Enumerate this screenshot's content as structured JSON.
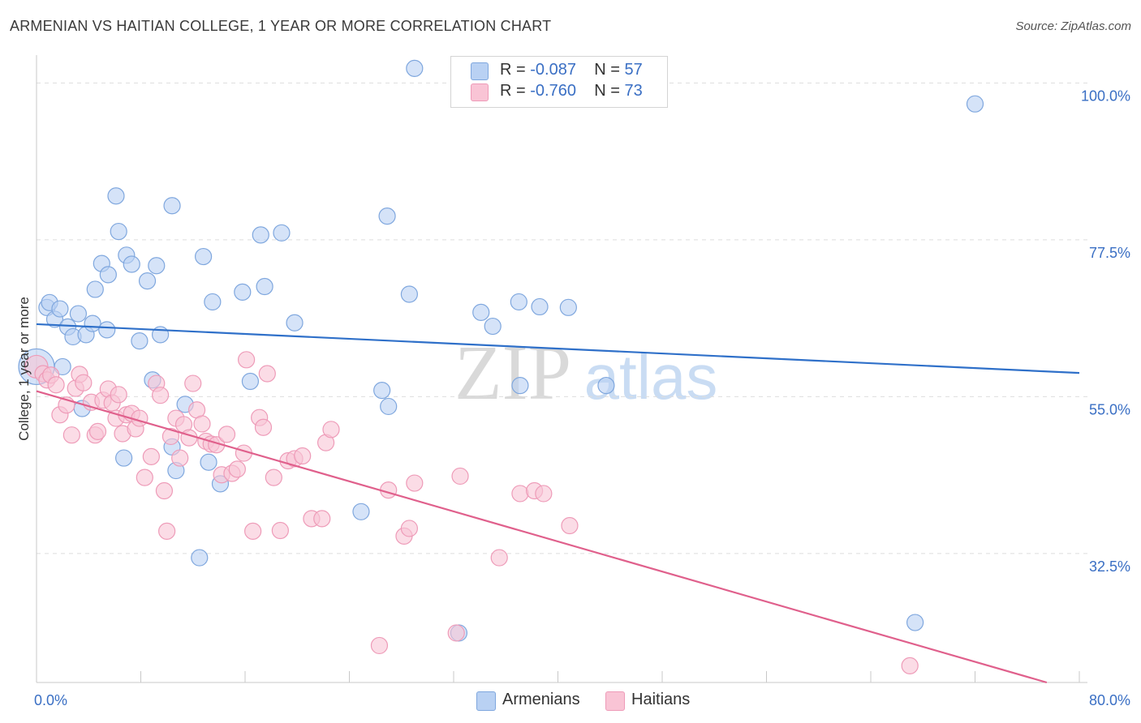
{
  "title": "ARMENIAN VS HAITIAN COLLEGE, 1 YEAR OR MORE CORRELATION CHART",
  "source": "Source: ZipAtlas.com",
  "watermark": {
    "zip": "ZIP",
    "atlas": "atlas"
  },
  "legend": {
    "r_label": "R =",
    "n_label": "N =",
    "rows": [
      {
        "r": "-0.087",
        "n": "57"
      },
      {
        "r": "-0.760",
        "n": "73"
      }
    ]
  },
  "colors": {
    "armenian_fill": "#b9d1f3",
    "armenian_stroke": "#7fa7de",
    "armenian_line": "#2f70c9",
    "haitian_fill": "#f9c4d5",
    "haitian_stroke": "#ee9bb8",
    "haitian_line": "#e0608c",
    "tick_label": "#3a6fc4",
    "grid": "#dddddd"
  },
  "chart_data": {
    "type": "scatter",
    "title": "ARMENIAN VS HAITIAN COLLEGE, 1 YEAR OR MORE CORRELATION CHART",
    "xlabel": "",
    "ylabel": "College, 1 year or more",
    "xlim": [
      0,
      80
    ],
    "ylim": [
      14,
      104
    ],
    "x_tick_labels": [
      "0.0%",
      "80.0%"
    ],
    "y_ticks": [
      32.5,
      55.0,
      77.5,
      100.0
    ],
    "y_tick_labels": [
      "32.5%",
      "55.0%",
      "77.5%",
      "100.0%"
    ],
    "series": [
      {
        "name": "Armenians",
        "r": -0.087,
        "n": 57,
        "trend": {
          "x": [
            0,
            80
          ],
          "y": [
            65.4,
            58.4
          ]
        },
        "points": [
          [
            0.0,
            59.3,
            22
          ],
          [
            0.8,
            67.8,
            10
          ],
          [
            1.0,
            68.5,
            10
          ],
          [
            1.4,
            66.1,
            10
          ],
          [
            1.8,
            67.6,
            10
          ],
          [
            2.0,
            59.3,
            10
          ],
          [
            2.4,
            65.0,
            10
          ],
          [
            2.8,
            63.6,
            10
          ],
          [
            3.2,
            66.9,
            10
          ],
          [
            3.5,
            53.3,
            10
          ],
          [
            3.8,
            63.9,
            10
          ],
          [
            4.3,
            65.5,
            10
          ],
          [
            4.5,
            70.4,
            10
          ],
          [
            5.0,
            74.1,
            10
          ],
          [
            5.4,
            64.6,
            10
          ],
          [
            5.5,
            72.5,
            10
          ],
          [
            6.1,
            83.8,
            10
          ],
          [
            6.3,
            78.7,
            10
          ],
          [
            6.7,
            46.2,
            10
          ],
          [
            6.9,
            75.3,
            10
          ],
          [
            7.3,
            74.0,
            10
          ],
          [
            7.9,
            63.0,
            10
          ],
          [
            8.5,
            71.6,
            10
          ],
          [
            8.9,
            57.4,
            10
          ],
          [
            9.2,
            73.8,
            10
          ],
          [
            9.5,
            63.9,
            10
          ],
          [
            10.4,
            47.8,
            10
          ],
          [
            10.4,
            82.4,
            10
          ],
          [
            10.7,
            44.4,
            10
          ],
          [
            11.4,
            53.9,
            10
          ],
          [
            12.5,
            31.9,
            10
          ],
          [
            12.8,
            75.1,
            10
          ],
          [
            13.2,
            45.6,
            10
          ],
          [
            13.5,
            68.6,
            10
          ],
          [
            14.1,
            42.5,
            10
          ],
          [
            15.8,
            70.0,
            10
          ],
          [
            16.4,
            57.2,
            10
          ],
          [
            17.2,
            78.2,
            10
          ],
          [
            17.5,
            70.8,
            10
          ],
          [
            18.8,
            78.5,
            10
          ],
          [
            19.8,
            65.6,
            10
          ],
          [
            24.9,
            38.5,
            10
          ],
          [
            26.5,
            55.9,
            10
          ],
          [
            26.9,
            80.9,
            10
          ],
          [
            27.0,
            53.6,
            10
          ],
          [
            28.6,
            69.7,
            10
          ],
          [
            29.0,
            102.1,
            10
          ],
          [
            32.4,
            21.1,
            10
          ],
          [
            34.1,
            67.1,
            10
          ],
          [
            35.0,
            65.1,
            10
          ],
          [
            37.0,
            68.6,
            10
          ],
          [
            37.1,
            56.6,
            10
          ],
          [
            38.6,
            67.9,
            10
          ],
          [
            40.8,
            67.8,
            10
          ],
          [
            43.7,
            56.6,
            10
          ],
          [
            67.4,
            22.6,
            10
          ],
          [
            72.0,
            97.0,
            10
          ]
        ]
      },
      {
        "name": "Haitians",
        "r": -0.76,
        "n": 73,
        "trend": {
          "x": [
            0,
            77.5
          ],
          "y": [
            55.8,
            14.0
          ]
        },
        "points": [
          [
            0.0,
            59.3,
            14
          ],
          [
            0.5,
            58.3,
            10
          ],
          [
            0.8,
            57.4,
            10
          ],
          [
            1.1,
            58.1,
            10
          ],
          [
            1.5,
            56.7,
            10
          ],
          [
            1.8,
            52.4,
            10
          ],
          [
            2.3,
            53.8,
            10
          ],
          [
            2.7,
            49.5,
            10
          ],
          [
            3.0,
            56.2,
            10
          ],
          [
            3.3,
            58.2,
            10
          ],
          [
            3.6,
            57.0,
            10
          ],
          [
            4.2,
            54.2,
            10
          ],
          [
            4.5,
            49.5,
            10
          ],
          [
            4.7,
            50.0,
            10
          ],
          [
            5.1,
            54.5,
            10
          ],
          [
            5.5,
            56.1,
            10
          ],
          [
            5.8,
            54.1,
            10
          ],
          [
            6.1,
            51.9,
            10
          ],
          [
            6.3,
            55.3,
            10
          ],
          [
            6.6,
            49.7,
            10
          ],
          [
            6.9,
            52.4,
            10
          ],
          [
            7.3,
            52.6,
            10
          ],
          [
            7.6,
            50.4,
            10
          ],
          [
            7.9,
            51.9,
            10
          ],
          [
            8.3,
            43.4,
            10
          ],
          [
            8.8,
            46.4,
            10
          ],
          [
            9.2,
            56.9,
            10
          ],
          [
            9.5,
            55.2,
            10
          ],
          [
            9.8,
            41.5,
            10
          ],
          [
            10.0,
            35.7,
            10
          ],
          [
            10.3,
            49.3,
            10
          ],
          [
            10.7,
            51.9,
            10
          ],
          [
            11.0,
            46.2,
            10
          ],
          [
            11.3,
            51.0,
            10
          ],
          [
            11.7,
            49.1,
            10
          ],
          [
            12.0,
            56.9,
            10
          ],
          [
            12.3,
            53.1,
            10
          ],
          [
            12.7,
            51.1,
            10
          ],
          [
            13.0,
            48.6,
            10
          ],
          [
            13.4,
            48.2,
            10
          ],
          [
            13.8,
            48.1,
            10
          ],
          [
            14.2,
            43.8,
            10
          ],
          [
            14.6,
            49.6,
            10
          ],
          [
            15.0,
            44.0,
            10
          ],
          [
            15.4,
            44.6,
            10
          ],
          [
            15.9,
            46.9,
            10
          ],
          [
            16.1,
            60.3,
            10
          ],
          [
            16.6,
            35.7,
            10
          ],
          [
            17.1,
            52.0,
            10
          ],
          [
            17.4,
            50.6,
            10
          ],
          [
            17.7,
            58.3,
            10
          ],
          [
            18.2,
            43.4,
            10
          ],
          [
            18.7,
            35.8,
            10
          ],
          [
            19.3,
            45.8,
            10
          ],
          [
            19.8,
            46.1,
            10
          ],
          [
            20.4,
            46.5,
            10
          ],
          [
            21.1,
            37.5,
            10
          ],
          [
            21.9,
            37.5,
            10
          ],
          [
            22.2,
            48.4,
            10
          ],
          [
            22.6,
            50.3,
            10
          ],
          [
            26.3,
            19.3,
            10
          ],
          [
            27.0,
            41.6,
            10
          ],
          [
            28.2,
            35.0,
            10
          ],
          [
            28.6,
            36.1,
            10
          ],
          [
            29.0,
            42.6,
            10
          ],
          [
            32.2,
            21.1,
            10
          ],
          [
            32.5,
            43.6,
            10
          ],
          [
            35.5,
            31.9,
            10
          ],
          [
            37.1,
            41.1,
            10
          ],
          [
            38.2,
            41.5,
            10
          ],
          [
            38.9,
            41.1,
            10
          ],
          [
            40.9,
            36.5,
            10
          ],
          [
            67.0,
            16.4,
            10
          ]
        ]
      }
    ]
  }
}
